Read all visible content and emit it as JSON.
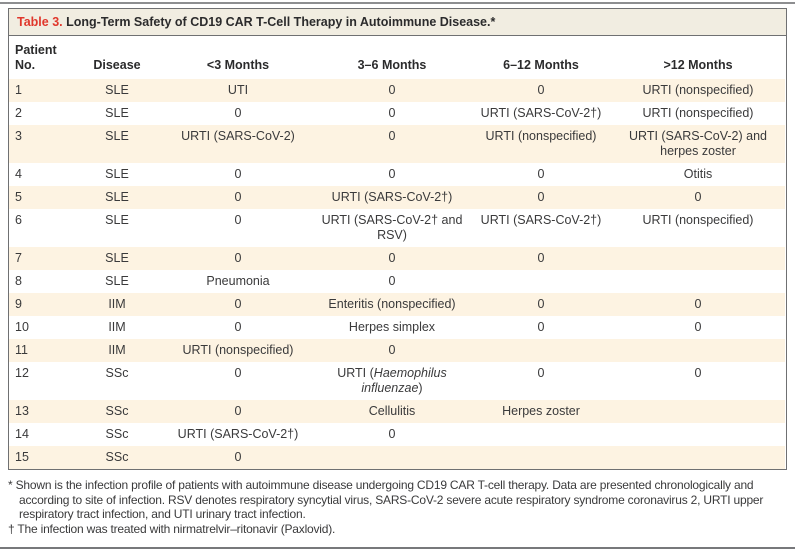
{
  "title": {
    "label": "Table 3.",
    "text": "Long-Term Safety of CD19 CAR T-Cell Therapy in Autoimmune Disease.*"
  },
  "table": {
    "columns": [
      {
        "id": "patient-no",
        "label": "Patient No.",
        "align": "left"
      },
      {
        "id": "disease",
        "label": "Disease",
        "align": "center"
      },
      {
        "id": "lt-3-months",
        "label": "<3 Months",
        "align": "center"
      },
      {
        "id": "3-6-months",
        "label": "3–6 Months",
        "align": "center"
      },
      {
        "id": "6-12-months",
        "label": "6–12 Months",
        "align": "center"
      },
      {
        "id": "gt-12-months",
        "label": ">12 Months",
        "align": "center"
      }
    ],
    "rows": [
      [
        "1",
        "SLE",
        "UTI",
        "0",
        "0",
        "URTI (nonspecified)"
      ],
      [
        "2",
        "SLE",
        "0",
        "0",
        "URTI (SARS-CoV-2†)",
        "URTI (nonspecified)"
      ],
      [
        "3",
        "SLE",
        "URTI (SARS-CoV-2)",
        "0",
        "URTI (nonspecified)",
        "URTI (SARS-CoV-2) and herpes zoster"
      ],
      [
        "4",
        "SLE",
        "0",
        "0",
        "0",
        "Otitis"
      ],
      [
        "5",
        "SLE",
        "0",
        "URTI (SARS-CoV-2†)",
        "0",
        "0"
      ],
      [
        "6",
        "SLE",
        "0",
        "URTI (SARS-CoV-2† and RSV)",
        "URTI (SARS-CoV-2†)",
        "URTI (nonspecified)"
      ],
      [
        "7",
        "SLE",
        "0",
        "0",
        "0",
        ""
      ],
      [
        "8",
        "SLE",
        "Pneumonia",
        "0",
        "",
        ""
      ],
      [
        "9",
        "IIM",
        "0",
        "Enteritis (nonspecified)",
        "0",
        "0"
      ],
      [
        "10",
        "IIM",
        "0",
        "Herpes simplex",
        "0",
        "0"
      ],
      [
        "11",
        "IIM",
        "URTI (nonspecified)",
        "0",
        "",
        ""
      ],
      [
        "12",
        "SSc",
        "0",
        "URTI (*Haemophilus influenzae*)",
        "0",
        "0"
      ],
      [
        "13",
        "SSc",
        "0",
        "Cellulitis",
        "Herpes zoster",
        ""
      ],
      [
        "14",
        "SSc",
        "URTI (SARS-CoV-2†)",
        "0",
        "",
        ""
      ],
      [
        "15",
        "SSc",
        "0",
        "",
        "",
        ""
      ]
    ]
  },
  "footnotes": [
    {
      "symbol": "*",
      "text": "Shown is the infection profile of patients with autoimmune disease undergoing CD19 CAR T-cell therapy. Data are presented chronologically and according to site of infection. RSV denotes respiratory syncytial virus, SARS-CoV-2 severe acute respiratory syndrome coronavirus 2, URTI upper respiratory tract infection, and UTI urinary tract infection."
    },
    {
      "symbol": "†",
      "text": "The infection was treated with nirmatrelvir–ritonavir (Paxlovid)."
    }
  ],
  "colors": {
    "accent_red": "#e0372c",
    "row_stripe": "#fdf3e2",
    "title_band": "#f1ede1",
    "table_border": "#6f7072",
    "rule_gray": "#8d8e90",
    "text": "#3a3a3b"
  }
}
